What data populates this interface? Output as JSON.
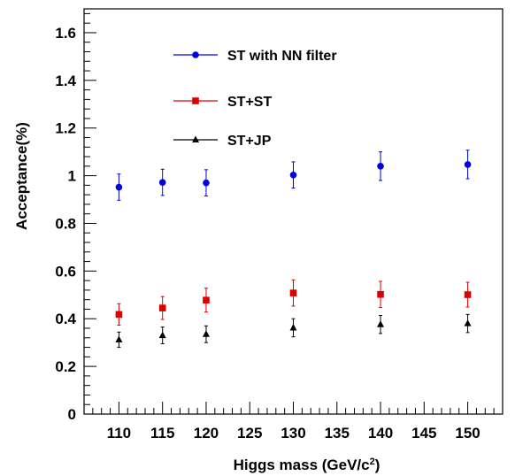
{
  "chart_data": {
    "type": "scatter",
    "xlabel": "Higgs mass (GeV/c",
    "xlabel_sup": "2",
    "xlabel_close": ")",
    "ylabel": "Acceptance(%)",
    "xlim": [
      106,
      154
    ],
    "ylim": [
      0,
      1.7
    ],
    "x_ticks": [
      110,
      115,
      120,
      125,
      130,
      135,
      140,
      145,
      150
    ],
    "y_ticks": [
      0,
      0.2,
      0.4,
      0.6,
      0.8,
      1,
      1.2,
      1.4,
      1.6
    ],
    "y_tick_labels": [
      "0",
      "0.2",
      "0.4",
      "0.6",
      "0.8",
      "1",
      "1.2",
      "1.4",
      "1.6"
    ],
    "grid": false,
    "legend_position": "top-center",
    "series": [
      {
        "name": "ST with NN filter",
        "color": "#0000dd",
        "marker": "circle",
        "x": [
          110,
          115,
          120,
          130,
          140,
          150
        ],
        "y": [
          0.952,
          0.972,
          0.97,
          1.003,
          1.04,
          1.047
        ],
        "err": [
          0.055,
          0.055,
          0.055,
          0.055,
          0.06,
          0.06
        ]
      },
      {
        "name": "ST+ST",
        "color": "#dd0000",
        "marker": "square",
        "x": [
          110,
          115,
          120,
          130,
          140,
          150
        ],
        "y": [
          0.418,
          0.445,
          0.478,
          0.508,
          0.502,
          0.501
        ],
        "err": [
          0.045,
          0.048,
          0.05,
          0.055,
          0.055,
          0.052
        ]
      },
      {
        "name": "ST+JP",
        "color": "#000000",
        "marker": "triangle",
        "x": [
          110,
          115,
          120,
          130,
          140,
          150
        ],
        "y": [
          0.312,
          0.33,
          0.335,
          0.362,
          0.376,
          0.38
        ],
        "err": [
          0.032,
          0.035,
          0.035,
          0.038,
          0.038,
          0.038
        ]
      }
    ]
  }
}
